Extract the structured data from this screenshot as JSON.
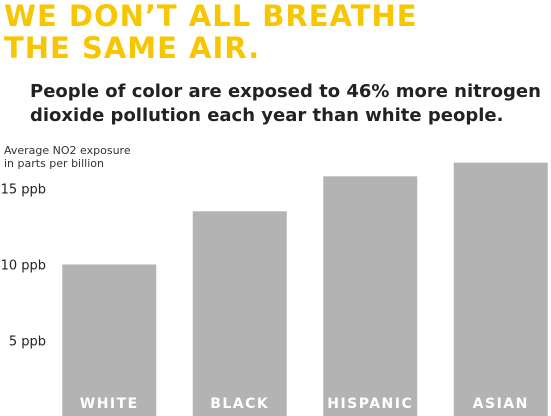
{
  "chart_data": {
    "type": "bar",
    "title": [
      "WE DON’T ALL BREATHE",
      "THE SAME AIR."
    ],
    "subtitle": [
      "People of color are exposed to 46% more nitrogen",
      "dioxide pollution each year than white people."
    ],
    "ylabel": [
      "Average NO2 exposure",
      "in parts per billion"
    ],
    "categories": [
      "WHITE",
      "BLACK",
      "HISPANIC",
      "ASIAN"
    ],
    "values": [
      10.1,
      13.6,
      15.9,
      16.8
    ],
    "color": "#b3b3b3",
    "ylim": [
      0,
      17.5
    ],
    "yticks": [
      {
        "value": 5,
        "label": "5 ppb"
      },
      {
        "value": 10,
        "label": "10 ppb"
      },
      {
        "value": 15,
        "label": "15 ppb"
      }
    ],
    "grid": false
  }
}
